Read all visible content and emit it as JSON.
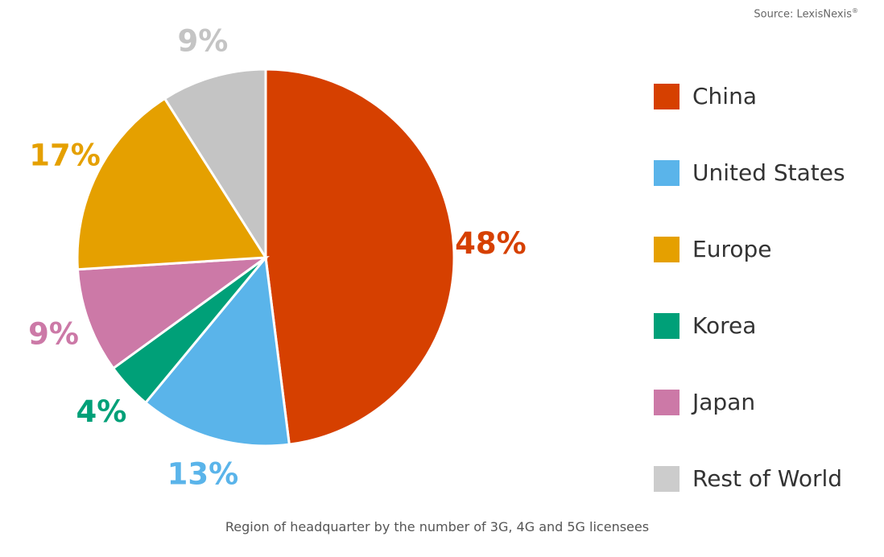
{
  "source": {
    "text": "Source: LexisNexis",
    "mark": "®"
  },
  "caption": "Region of headquarter by the number of 3G, 4G and 5G licensees",
  "chart_data": {
    "type": "pie",
    "title": "",
    "start": "top, clockwise",
    "slices": [
      {
        "label": "China",
        "value": 48,
        "display": "48%",
        "color": "#d64000"
      },
      {
        "label": "United States",
        "value": 13,
        "display": "13%",
        "color": "#5ab4ea"
      },
      {
        "label": "Korea",
        "value": 4,
        "display": "4%",
        "color": "#00a078"
      },
      {
        "label": "Japan",
        "value": 9,
        "display": "9%",
        "color": "#cc79a7"
      },
      {
        "label": "Europe",
        "value": 17,
        "display": "17%",
        "color": "#e5a000"
      },
      {
        "label": "Rest of World",
        "value": 9,
        "display": "9%",
        "color": "#c4c4c4"
      }
    ],
    "legend": {
      "placement": "right",
      "items": [
        {
          "label": "China",
          "color": "#d64000"
        },
        {
          "label": "United States",
          "color": "#5ab4ea"
        },
        {
          "label": "Europe",
          "color": "#e5a000"
        },
        {
          "label": "Korea",
          "color": "#00a078"
        },
        {
          "label": "Japan",
          "color": "#cc79a7"
        },
        {
          "label": "Rest of World",
          "color": "#cccccc"
        }
      ]
    }
  }
}
